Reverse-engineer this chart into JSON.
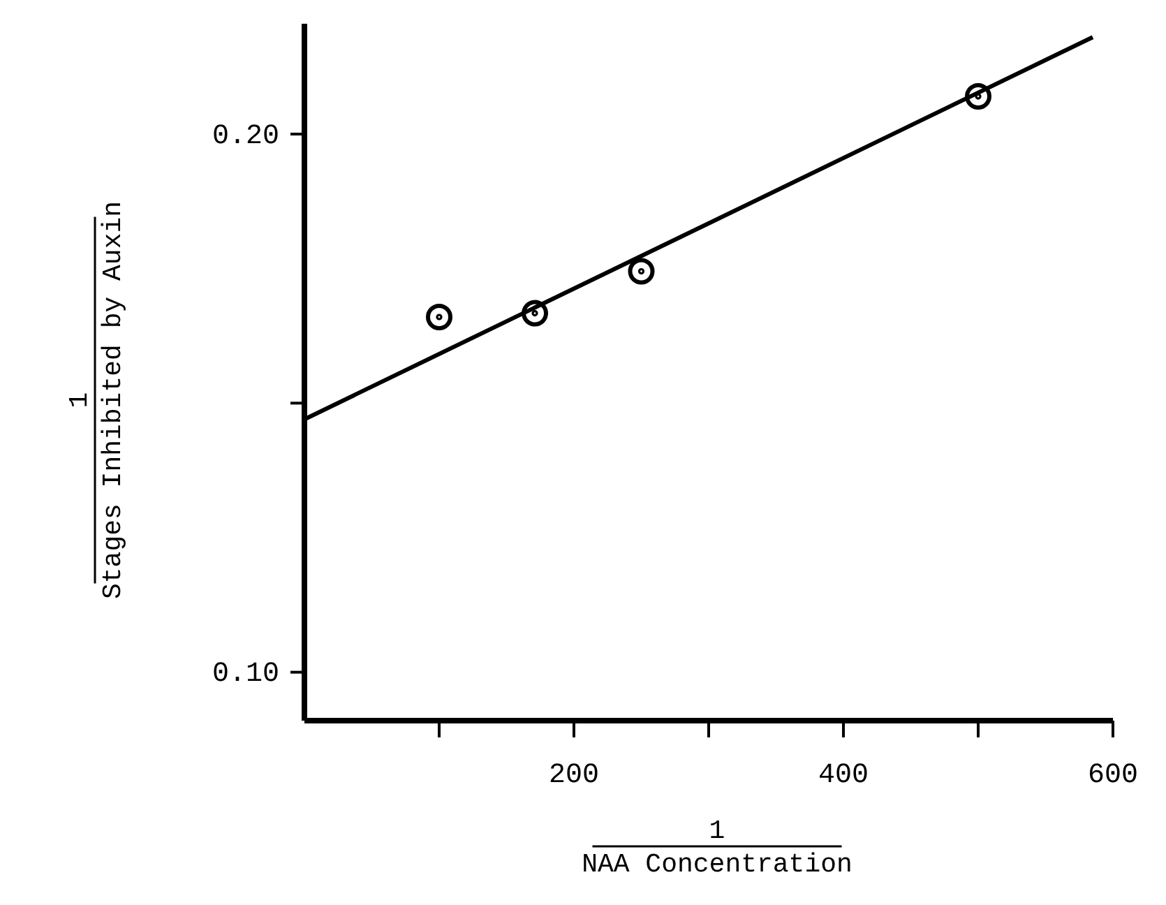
{
  "chart_data": {
    "type": "scatter",
    "xlabel": "1\nNAA Concentration",
    "ylabel": "1\nStages Inhibited by Auxin",
    "xlim": [
      0,
      600
    ],
    "xticks": [
      {
        "value": 100,
        "label": null
      },
      200,
      {
        "value": 300,
        "label": null
      },
      400,
      {
        "value": 500,
        "label": null
      },
      600
    ],
    "ylim": [
      0.091,
      0.2205
    ],
    "yticks": [
      {
        "value": 0.1,
        "label": "0.10"
      },
      {
        "value": 0.15,
        "label": null
      },
      {
        "value": 0.2,
        "label": "0.20"
      }
    ],
    "grid": false,
    "series": [
      {
        "color": "#000000",
        "marker": "circle",
        "x": [
          100,
          171,
          250,
          500
        ],
        "values": [
          0.166,
          0.1667,
          0.1745,
          0.207
        ]
      },
      {
        "type": "line",
        "color": "#000000",
        "marker": "none",
        "line_style": "solid",
        "x": [
          0,
          585
        ],
        "values": [
          0.147,
          0.218
        ]
      }
    ]
  }
}
